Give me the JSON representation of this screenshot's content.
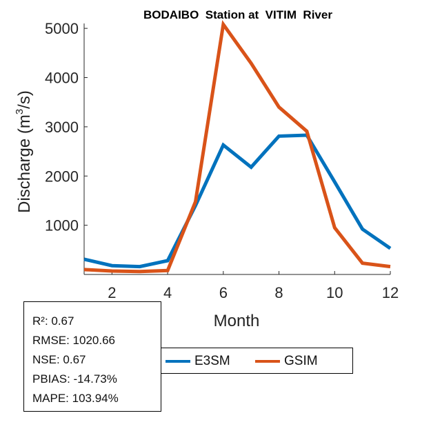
{
  "chart_data": {
    "type": "line",
    "title": "BODAIBO  Station at  VITIM  River",
    "xlabel": "Month",
    "ylabel": "Discharge (m",
    "ylabel_sup": "3",
    "ylabel_end": "/s)",
    "xlim": [
      1,
      12
    ],
    "ylim": [
      0,
      5100
    ],
    "xticks": [
      2,
      4,
      6,
      8,
      10,
      12
    ],
    "yticks": [
      1000,
      2000,
      3000,
      4000,
      5000
    ],
    "x": [
      1,
      2,
      3,
      4,
      5,
      6,
      7,
      8,
      9,
      10,
      11,
      12
    ],
    "series": [
      {
        "name": "E3SM",
        "color": "#0072BD",
        "values": [
          310,
          180,
          160,
          280,
          1400,
          2630,
          2180,
          2810,
          2830,
          1880,
          920,
          530
        ]
      },
      {
        "name": "GSIM",
        "color": "#D95319",
        "values": [
          100,
          70,
          60,
          80,
          1480,
          5080,
          4290,
          3400,
          2910,
          950,
          230,
          160
        ]
      }
    ],
    "legend_position": "bottom"
  },
  "stats": [
    "R²: 0.67",
    "RMSE: 1020.66",
    "NSE: 0.67",
    "PBIAS: -14.73%",
    "MAPE: 103.94%"
  ]
}
